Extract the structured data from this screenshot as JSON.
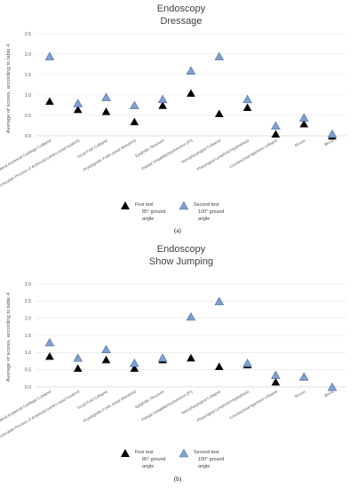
{
  "chart_data": [
    {
      "type": "scatter",
      "title_line1": "Endoscopy",
      "title_line2": "Dressage",
      "ylabel": "Average of scores, according to table 4",
      "ylim": [
        0,
        2.5
      ],
      "yticks": [
        "0.0",
        "0.5",
        "1.0",
        "1.5",
        "2.0",
        "2.5"
      ],
      "categories": [
        "Intermittent Bilateral Arytenoid Cartilage Collapse",
        "Corniculate Process of Arytenoid (ventro-axial luxation)",
        "Vocal Fold Collapse",
        "Aryepiglottic Folds (axial deviation)",
        "Epiglottic Structure",
        "Palatal Instability/Dysfunction (PI)",
        "Nasopharyngeal Collapse",
        "Pharyngeal Lymphoid Hyperplasia",
        "Cricotracheal ligament collapse",
        "Mucus",
        "Blood"
      ],
      "series": [
        {
          "name": "First test 85° ground angle",
          "marker": "triangle",
          "color": "#000000",
          "values": [
            0.85,
            0.65,
            0.6,
            0.35,
            0.75,
            1.05,
            0.55,
            0.7,
            0.05,
            0.3,
            0.0
          ]
        },
        {
          "name": "Second test 100° ground angle",
          "marker": "triangle",
          "color": "#7f9fd0",
          "values": [
            1.95,
            0.8,
            0.95,
            0.75,
            0.9,
            1.6,
            1.95,
            0.9,
            0.25,
            0.45,
            0.05
          ]
        }
      ],
      "legend": [
        {
          "line1": "First test",
          "line2": "85° ground",
          "line3": "angle"
        },
        {
          "line1": "Second test",
          "line2": "100° ground",
          "line3": "angle"
        }
      ],
      "legend_placement": "bottom",
      "grid": true,
      "panel_label": "(a)"
    },
    {
      "type": "scatter",
      "title_line1": "Endoscopy",
      "title_line2": "Show Jumping",
      "ylabel": "Average of scores, according to table 4",
      "ylim": [
        0,
        3.0
      ],
      "yticks": [
        "0.0",
        "0.5",
        "1.0",
        "1.5",
        "2.0",
        "2.5",
        "3.0"
      ],
      "categories": [
        "Intermittent Bilateral Arytenoid Cartilage Collapse",
        "Corniculate Process of Arytenoid (ventro-axial luxation)",
        "Vocal Fold Collapse",
        "Aryepiglottic Folds (axial deviation)",
        "Epiglottic Structure",
        "Palatal Instability/Dysfunction (PI)",
        "Nasopharyngeal Collapse",
        "Pharyngeal Lymphoid Hyperplasia",
        "Cricotracheal ligament collapse",
        "Mucus",
        "Blood"
      ],
      "series": [
        {
          "name": "First test 85° ground angle",
          "marker": "triangle",
          "color": "#000000",
          "values": [
            0.9,
            0.55,
            0.8,
            0.55,
            0.8,
            0.85,
            0.6,
            0.65,
            0.15,
            0.3,
            0.0
          ]
        },
        {
          "name": "Second test 100° ground angle",
          "marker": "triangle",
          "color": "#7f9fd0",
          "values": [
            1.3,
            0.85,
            1.1,
            0.7,
            0.85,
            2.05,
            2.5,
            0.7,
            0.35,
            0.3,
            0.0
          ]
        }
      ],
      "legend": [
        {
          "line1": "First test",
          "line2": "85° ground",
          "line3": "angle"
        },
        {
          "line1": "Second test",
          "line2": "100° ground",
          "line3": "angle"
        }
      ],
      "legend_placement": "bottom",
      "grid": true,
      "panel_label": "(b)"
    }
  ]
}
